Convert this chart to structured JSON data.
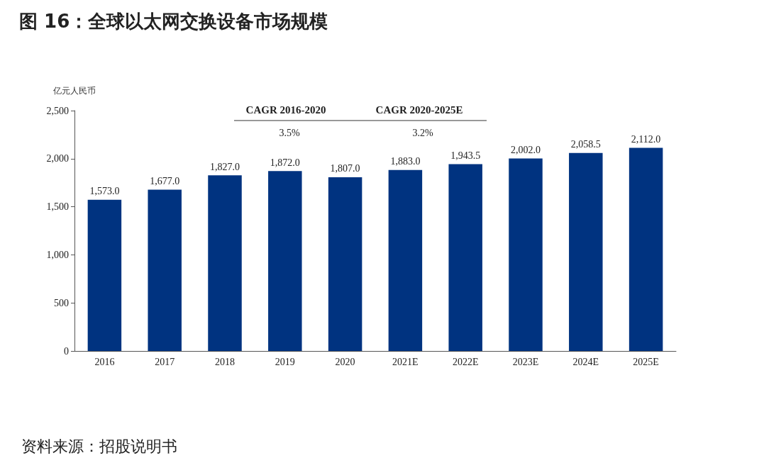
{
  "chart_data": {
    "type": "bar",
    "title": "图 16：全球以太网交换设备市场规模",
    "ylabel": "亿元人民币",
    "categories": [
      "2016",
      "2017",
      "2018",
      "2019",
      "2020",
      "2021E",
      "2022E",
      "2023E",
      "2024E",
      "2025E"
    ],
    "values": [
      1573.0,
      1677.0,
      1827.0,
      1872.0,
      1807.0,
      1883.0,
      1943.5,
      2002.0,
      2058.5,
      2112.0
    ],
    "value_labels": [
      "1,573.0",
      "1,677.0",
      "1,827.0",
      "1,872.0",
      "1,807.0",
      "1,883.0",
      "1,943.5",
      "2,002.0",
      "2,058.5",
      "2,112.0"
    ],
    "color": "#003380",
    "ylim": [
      0,
      2500
    ],
    "yticks": [
      0,
      500,
      {
        "value": 1000,
        "label": "1,000"
      },
      {
        "value": 1500,
        "label": "1,500"
      },
      {
        "value": 2000,
        "label": "2,000"
      },
      {
        "value": 2500,
        "label": "2,500"
      }
    ],
    "grid": false,
    "annotations": [
      "CAGR 2016-2020",
      "3.5%",
      "CAGR 2020-2025E",
      "3.2%",
      "资料来源：招股说明书"
    ]
  }
}
